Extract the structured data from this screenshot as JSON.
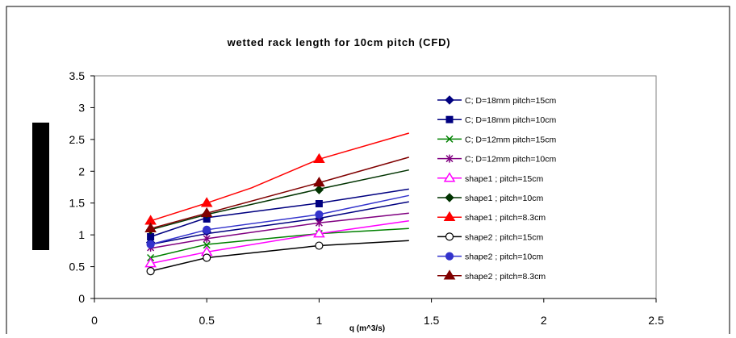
{
  "chart_data": {
    "type": "line",
    "title": "wetted rack length for 10cm pitch (CFD)",
    "xlabel": "q (m^3/s)",
    "ylabel": "",
    "xlim": [
      0,
      2.5
    ],
    "ylim": [
      0,
      3.5
    ],
    "x_ticks": [
      "0",
      "0.5",
      "1",
      "1.5",
      "2",
      "2.5"
    ],
    "y_ticks": [
      "0",
      "0.5",
      "1",
      "1.5",
      "2",
      "2.5",
      "3",
      "3.5"
    ],
    "grid": false,
    "legend_position": "right",
    "series": [
      {
        "name": "C; D=18mm pitch=15cm",
        "color": "#000080",
        "marker": "diamond",
        "points": [
          [
            0.25,
            0.88
          ],
          [
            0.5,
            1.05
          ],
          [
            1.0,
            1.25
          ]
        ],
        "trend": [
          [
            0.25,
            0.85
          ],
          [
            0.5,
            1.02
          ],
          [
            1.0,
            1.26
          ],
          [
            1.4,
            1.52
          ]
        ]
      },
      {
        "name": "C; D=18mm pitch=10cm",
        "color": "#000080",
        "marker": "square",
        "points": [
          [
            0.25,
            0.97
          ],
          [
            0.5,
            1.25
          ],
          [
            1.0,
            1.49
          ]
        ],
        "trend": [
          [
            0.25,
            0.97
          ],
          [
            0.5,
            1.27
          ],
          [
            1.0,
            1.5
          ],
          [
            1.4,
            1.72
          ]
        ]
      },
      {
        "name": "C; D=12mm pitch=15cm",
        "color": "#008000",
        "marker": "x",
        "points": [
          [
            0.25,
            0.64
          ],
          [
            0.5,
            0.84
          ],
          [
            1.0,
            1.02
          ]
        ],
        "trend": [
          [
            0.25,
            0.64
          ],
          [
            0.5,
            0.85
          ],
          [
            1.0,
            1.02
          ],
          [
            1.4,
            1.1
          ]
        ]
      },
      {
        "name": "C; D=12mm pitch=10cm",
        "color": "#800080",
        "marker": "star",
        "points": [
          [
            0.25,
            0.8
          ],
          [
            0.5,
            0.94
          ],
          [
            1.0,
            1.19
          ]
        ],
        "trend": [
          [
            0.25,
            0.79
          ],
          [
            0.5,
            0.94
          ],
          [
            1.0,
            1.19
          ],
          [
            1.4,
            1.34
          ]
        ]
      },
      {
        "name": "shape1 ; pitch=15cm",
        "color": "#ff00ff",
        "marker": "triangle-open",
        "points": [
          [
            0.25,
            0.55
          ],
          [
            0.5,
            0.73
          ],
          [
            1.0,
            1.02
          ]
        ],
        "trend": [
          [
            0.25,
            0.55
          ],
          [
            0.5,
            0.73
          ],
          [
            1.0,
            1.02
          ],
          [
            1.4,
            1.22
          ]
        ]
      },
      {
        "name": "shape1 ; pitch=10cm",
        "color": "#003300",
        "marker": "diamond",
        "points": [
          [
            0.25,
            1.08
          ],
          [
            0.5,
            1.33
          ],
          [
            1.0,
            1.71
          ]
        ],
        "trend": [
          [
            0.25,
            1.08
          ],
          [
            0.5,
            1.32
          ],
          [
            1.0,
            1.72
          ],
          [
            1.4,
            2.02
          ]
        ]
      },
      {
        "name": "shape1 ; pitch=8.3cm",
        "color": "#ff0000",
        "marker": "triangle",
        "points": [
          [
            0.25,
            1.22
          ],
          [
            0.5,
            1.5
          ],
          [
            1.0,
            2.19
          ]
        ],
        "trend": [
          [
            0.25,
            1.22
          ],
          [
            0.5,
            1.5
          ],
          [
            0.7,
            1.74
          ],
          [
            1.0,
            2.19
          ],
          [
            1.4,
            2.6
          ]
        ]
      },
      {
        "name": "shape2 ; pitch=15cm",
        "color": "#000000",
        "marker": "circle-open",
        "points": [
          [
            0.25,
            0.43
          ],
          [
            0.5,
            0.64
          ],
          [
            1.0,
            0.83
          ]
        ],
        "trend": [
          [
            0.25,
            0.43
          ],
          [
            0.5,
            0.64
          ],
          [
            1.0,
            0.83
          ],
          [
            1.4,
            0.91
          ]
        ]
      },
      {
        "name": "shape2 ; pitch=10cm",
        "color": "#3333cc",
        "marker": "circle",
        "points": [
          [
            0.25,
            0.85
          ],
          [
            0.5,
            1.08
          ],
          [
            1.0,
            1.32
          ]
        ],
        "trend": [
          [
            0.25,
            0.85
          ],
          [
            0.5,
            1.08
          ],
          [
            1.0,
            1.32
          ],
          [
            1.4,
            1.62
          ]
        ]
      },
      {
        "name": "shape2 ; pitch=8.3cm",
        "color": "#800000",
        "marker": "triangle",
        "points": [
          [
            0.25,
            1.1
          ],
          [
            0.5,
            1.34
          ],
          [
            1.0,
            1.82
          ]
        ],
        "trend": [
          [
            0.25,
            1.1
          ],
          [
            0.5,
            1.34
          ],
          [
            1.0,
            1.82
          ],
          [
            1.4,
            2.22
          ]
        ]
      }
    ]
  }
}
